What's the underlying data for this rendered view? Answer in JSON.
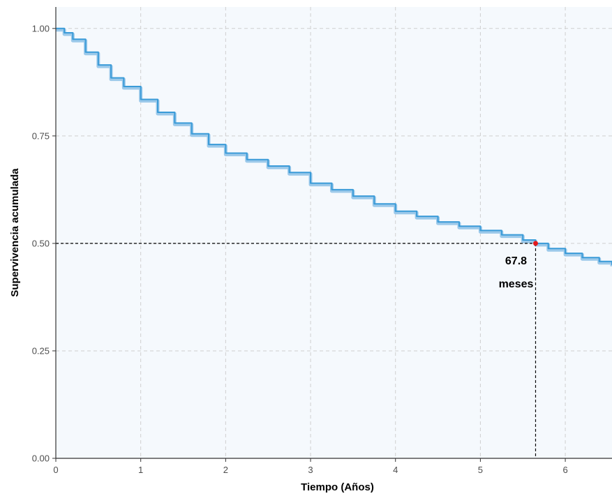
{
  "chart_data": {
    "type": "line",
    "title": "",
    "xlabel": "Tiempo (Años)",
    "ylabel": "Supervivencia acumulada",
    "xlim": [
      0,
      6.55
    ],
    "ylim": [
      0,
      1.05
    ],
    "x_ticks": [
      "0",
      "1",
      "2",
      "3",
      "4",
      "5",
      "6"
    ],
    "y_ticks": [
      "0.00",
      "0.25",
      "0.50",
      "0.75",
      "1.00"
    ],
    "grid": true,
    "colors": {
      "curve": "#3a9bd8",
      "band": "#9cc9ea",
      "panel_bg": "#f5f9fd",
      "grid": "#cfcfcf",
      "reference": "#000000",
      "median_point": "#e41a1c"
    },
    "series": [
      {
        "x": [
          0,
          0.1,
          0.2,
          0.35,
          0.5,
          0.65,
          0.8,
          1.0,
          1.2,
          1.4,
          1.6,
          1.8,
          2.0,
          2.25,
          2.5,
          2.75,
          3.0,
          3.25,
          3.5,
          3.75,
          4.0,
          4.25,
          4.5,
          4.75,
          5.0,
          5.25,
          5.5,
          5.65,
          5.8,
          6.0,
          6.2,
          6.4,
          6.55
        ],
        "y": [
          1.0,
          0.99,
          0.975,
          0.945,
          0.915,
          0.885,
          0.865,
          0.835,
          0.805,
          0.78,
          0.755,
          0.73,
          0.71,
          0.695,
          0.68,
          0.665,
          0.64,
          0.625,
          0.61,
          0.592,
          0.575,
          0.563,
          0.55,
          0.54,
          0.53,
          0.52,
          0.508,
          0.5,
          0.488,
          0.477,
          0.467,
          0.458,
          0.45
        ]
      }
    ],
    "median": {
      "x": 5.65,
      "y": 0.5
    },
    "annotations": [
      "67.8",
      "meses"
    ]
  }
}
